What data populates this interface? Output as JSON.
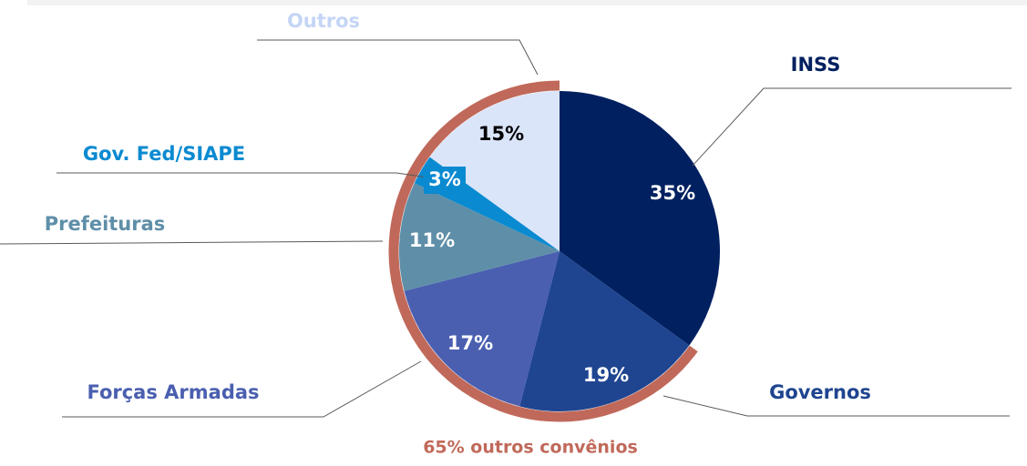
{
  "chart_data": {
    "type": "pie",
    "categories": [
      "INSS",
      "Governos",
      "Forças Armadas",
      "Prefeituras",
      "Gov. Fed/SIAPE",
      "Outros"
    ],
    "values": [
      35,
      19,
      17,
      11,
      3,
      15
    ],
    "value_labels": [
      "35%",
      "19%",
      "17%",
      "11%",
      "3%",
      "15%"
    ],
    "colors": [
      "#002060",
      "#1f4590",
      "#4a5fb0",
      "#5f8fa8",
      "#0a8ad0",
      "#dbe5fa"
    ],
    "label_colors": [
      "#002060",
      "#1f4590",
      "#4a5fb0",
      "#5f8fa8",
      "#0a8ad0",
      "#c5d5f5"
    ],
    "annotation": {
      "text": "65% outros convênios",
      "value": 65,
      "color": "#c0695a"
    }
  }
}
